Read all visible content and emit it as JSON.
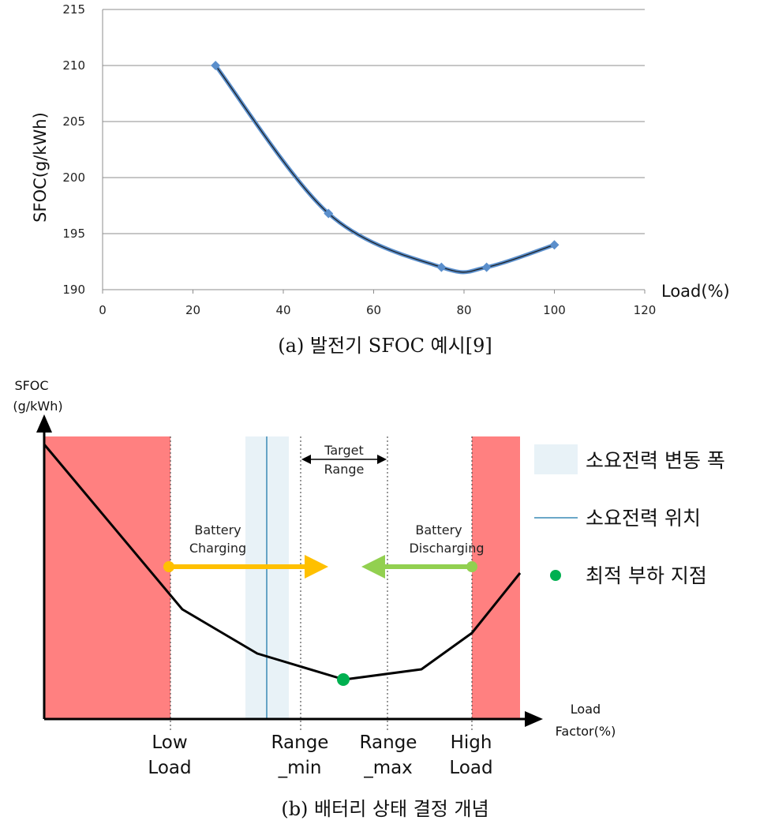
{
  "chart_data": [
    {
      "type": "line",
      "title": "",
      "xlabel": "Load(%)",
      "ylabel": "SFOC(g/kWh)",
      "xlim": [
        0,
        120
      ],
      "ylim": [
        190,
        215
      ],
      "x_ticks": [
        "0",
        "20",
        "40",
        "60",
        "80",
        "100",
        "120"
      ],
      "y_ticks": [
        "190",
        "195",
        "200",
        "205",
        "210",
        "215"
      ],
      "grid": "horizontal",
      "series": [
        {
          "x": [
            25,
            50,
            75,
            85,
            100
          ],
          "values": [
            210,
            196.8,
            192,
            192,
            194
          ],
          "color": "#5b8fcc"
        }
      ],
      "caption": "(a) 발전기 SFOC 예시[9]"
    },
    {
      "type": "line",
      "title": "",
      "ylabel_lines": [
        "SFOC",
        "(g/kWh)"
      ],
      "xlabel_lines": [
        "Load",
        "Factor(%)"
      ],
      "x_markers": [
        {
          "lines": [
            "Low",
            "Load"
          ]
        },
        {
          "lines": [
            "Range",
            "_min"
          ]
        },
        {
          "lines": [
            "Range",
            "_max"
          ]
        },
        {
          "lines": [
            "High",
            "Load"
          ]
        }
      ],
      "target_range_label": [
        "Target",
        "Range"
      ],
      "charging_label": [
        "Battery",
        "Charging"
      ],
      "discharging_label": [
        "Battery",
        "Discharging"
      ],
      "colors": {
        "danger_zone": "#ff8080",
        "demand_band": "#e8f2f7",
        "demand_line": "#3a8ab5",
        "charging_arrow": "#ffc000",
        "discharging_arrow": "#92d050",
        "optimal_point": "#00b050",
        "curve": "#000000"
      },
      "legend": [
        {
          "label": "소요전력 변동 폭",
          "symbol": "band"
        },
        {
          "label": "소요전력 위치",
          "symbol": "line"
        },
        {
          "label": "최적 부하 지점",
          "symbol": "dot"
        }
      ],
      "caption": "(b) 배터리 상태 결정 개념"
    }
  ]
}
